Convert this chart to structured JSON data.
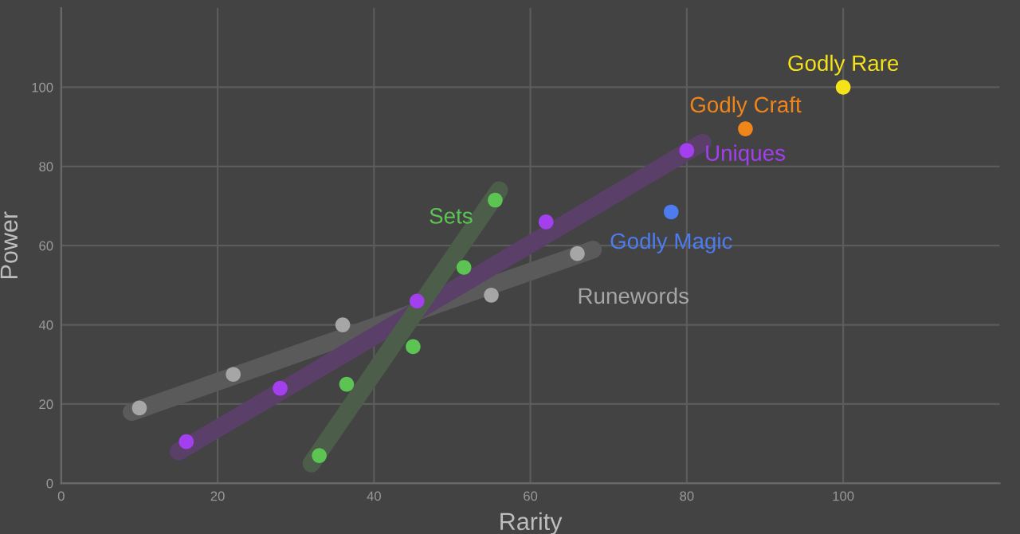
{
  "chart_data": {
    "type": "scatter",
    "xlabel": "Rarity",
    "ylabel": "Power",
    "xlim": [
      0,
      120
    ],
    "ylim": [
      0,
      120
    ],
    "xticks": [
      0,
      20,
      40,
      60,
      80,
      100
    ],
    "yticks": [
      0,
      20,
      40,
      60,
      80,
      100
    ],
    "grid": true,
    "legend": false,
    "marker": "circle",
    "series": [
      {
        "type": "line",
        "marker": "none",
        "color": "#5a5a5a",
        "x": [
          9,
          68
        ],
        "values": [
          18,
          59
        ]
      },
      {
        "type": "line",
        "marker": "none",
        "color": "#5a4068",
        "x": [
          15,
          82
        ],
        "values": [
          8,
          86
        ]
      },
      {
        "type": "line",
        "marker": "none",
        "color": "#4c5e4a",
        "x": [
          32,
          56
        ],
        "values": [
          5,
          74
        ]
      },
      {
        "name": "Runewords",
        "color": "#a6a6a6",
        "x": [
          10,
          22,
          36,
          55,
          66
        ],
        "values": [
          19,
          27.5,
          40,
          47.5,
          58
        ]
      },
      {
        "name": "Uniques",
        "color": "#a43ff0",
        "x": [
          16,
          28,
          45.5,
          62,
          80
        ],
        "values": [
          10.5,
          24,
          46,
          66,
          84
        ]
      },
      {
        "name": "Sets",
        "color": "#5cc452",
        "x": [
          33,
          36.5,
          45,
          51.5,
          55.5
        ],
        "values": [
          7,
          25,
          34.5,
          54.5,
          71.5
        ]
      },
      {
        "name": "Godly Magic",
        "color": "#4c7cf0",
        "x": [
          78
        ],
        "values": [
          68.5
        ]
      },
      {
        "name": "Godly Craft",
        "color": "#f0851a",
        "x": [
          87.5
        ],
        "values": [
          89.5
        ]
      },
      {
        "name": "Godly Rare",
        "color": "#f5e31a",
        "x": [
          100
        ],
        "values": [
          100
        ]
      }
    ]
  }
}
